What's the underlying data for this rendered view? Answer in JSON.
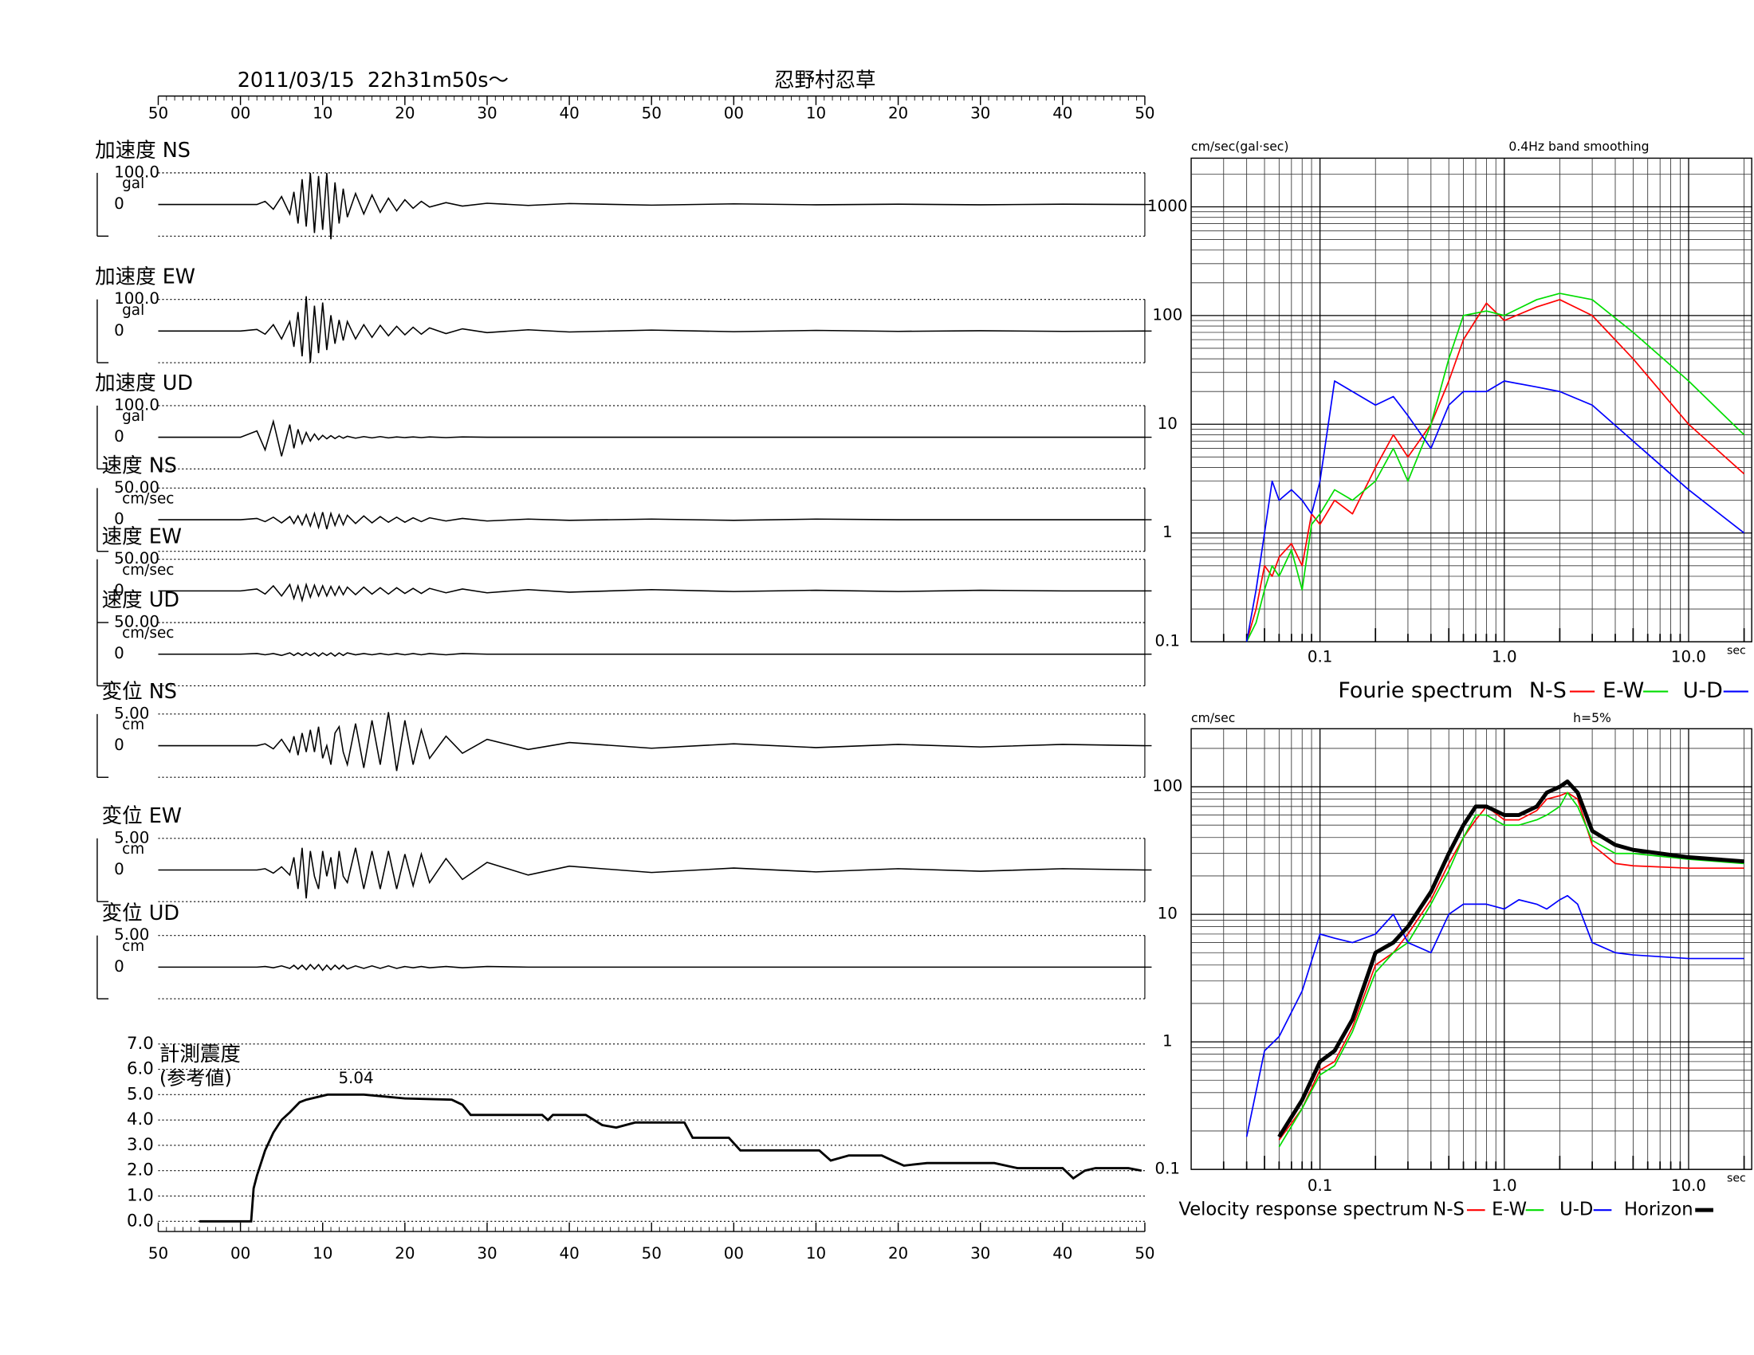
{
  "chart_data": [
    {
      "type": "waveform",
      "title": "2011/03/15  22h31m50s〜",
      "subtitle": "忍野村忍草",
      "color": "#000000",
      "xlim": [
        0,
        120
      ],
      "xticks": [
        {
          "value": 0,
          "label": "50"
        },
        {
          "value": 10,
          "label": "00"
        },
        {
          "value": 20,
          "label": "10"
        },
        {
          "value": 30,
          "label": "20"
        },
        {
          "value": 40,
          "label": "30"
        },
        {
          "value": 50,
          "label": "40"
        },
        {
          "value": 60,
          "label": "50"
        },
        {
          "value": 70,
          "label": "00"
        },
        {
          "value": 80,
          "label": "10"
        },
        {
          "value": 90,
          "label": "20"
        },
        {
          "value": 100,
          "label": "30"
        },
        {
          "value": 110,
          "label": "40"
        },
        {
          "value": 120,
          "label": "50"
        }
      ],
      "x": [
        0,
        10,
        12,
        13,
        14,
        15,
        16,
        16.5,
        17,
        17.5,
        18,
        18.5,
        19,
        19.5,
        20,
        20.5,
        21,
        21.5,
        22,
        22.5,
        23,
        24,
        25,
        26,
        27,
        28,
        29,
        30,
        31,
        32,
        33,
        35,
        37,
        40,
        45,
        50,
        60,
        70,
        80,
        90,
        100,
        110,
        120
      ],
      "series": [
        {
          "name": "加速度 NS",
          "unit": "gal",
          "ylim": [
            -100,
            100
          ],
          "yticks": [
            {
              "value": 100,
              "label": "100.0"
            },
            0
          ],
          "values": [
            0,
            0,
            0,
            10,
            -15,
            25,
            -30,
            40,
            -60,
            80,
            -70,
            100,
            -90,
            90,
            -80,
            100,
            -110,
            70,
            -60,
            50,
            -40,
            35,
            -30,
            30,
            -25,
            20,
            -20,
            15,
            -12,
            10,
            -8,
            6,
            -5,
            4,
            -3,
            3,
            -2,
            2,
            -1,
            1,
            -1,
            1,
            0
          ]
        },
        {
          "name": "加速度 EW",
          "unit": "gal",
          "ylim": [
            -100,
            100
          ],
          "yticks": [
            {
              "value": 100,
              "label": "100.0"
            },
            0
          ],
          "values": [
            0,
            0,
            5,
            -10,
            20,
            -25,
            30,
            -50,
            60,
            -80,
            110,
            -100,
            80,
            -70,
            90,
            -60,
            50,
            -40,
            35,
            -30,
            30,
            -25,
            20,
            -20,
            18,
            -15,
            15,
            -12,
            12,
            -10,
            10,
            -8,
            7,
            -5,
            4,
            -3,
            3,
            -2,
            2,
            -1,
            1,
            -1,
            0
          ]
        },
        {
          "name": "加速度 UD",
          "unit": "gal",
          "ylim": [
            -100,
            100
          ],
          "yticks": [
            {
              "value": 100,
              "label": "100.0"
            },
            0
          ],
          "values": [
            0,
            0,
            20,
            -40,
            50,
            -60,
            40,
            -35,
            25,
            -20,
            15,
            -12,
            10,
            -8,
            6,
            -5,
            5,
            -4,
            4,
            -3,
            3,
            -3,
            2,
            -2,
            2,
            -2,
            1,
            -1,
            1,
            -1,
            1,
            -1,
            1,
            0,
            0,
            0,
            0,
            0,
            0,
            0,
            0,
            0,
            0
          ]
        },
        {
          "name": "速度 NS",
          "unit": "cm/sec",
          "ylim": [
            -50,
            50
          ],
          "yticks": [
            {
              "value": 50,
              "label": "50.00"
            },
            0
          ],
          "values": [
            0,
            0,
            2,
            -3,
            4,
            -5,
            5,
            -6,
            6,
            -8,
            8,
            -10,
            10,
            -12,
            12,
            -15,
            10,
            -9,
            8,
            -8,
            7,
            -6,
            6,
            -5,
            5,
            -4,
            4,
            -4,
            3,
            -3,
            3,
            -2,
            2,
            -2,
            1,
            -1,
            1,
            -1,
            1,
            0,
            0,
            0,
            0
          ]
        },
        {
          "name": "速度 EW",
          "unit": "cm/sec",
          "ylim": [
            -50,
            50
          ],
          "yticks": [
            {
              "value": 50,
              "label": "50.00"
            },
            0
          ],
          "values": [
            0,
            0,
            3,
            -5,
            8,
            -8,
            10,
            -12,
            8,
            -15,
            10,
            -10,
            9,
            -8,
            8,
            -8,
            7,
            -7,
            7,
            -6,
            6,
            -6,
            6,
            -5,
            5,
            -5,
            5,
            -4,
            4,
            -4,
            4,
            -3,
            3,
            -3,
            2,
            -2,
            2,
            -1,
            1,
            -1,
            1,
            0,
            0
          ]
        },
        {
          "name": "速度 UD",
          "unit": "cm/sec",
          "ylim": [
            -50,
            50
          ],
          "yticks": [
            {
              "value": 50,
              "label": "50.00"
            },
            0
          ],
          "values": [
            0,
            0,
            1,
            -1,
            1,
            -2,
            2,
            -2,
            2,
            -2,
            2,
            -2,
            2,
            -3,
            2,
            -2,
            2,
            -3,
            2,
            -2,
            2,
            -1,
            1,
            -1,
            1,
            -1,
            1,
            -1,
            1,
            -1,
            1,
            -1,
            1,
            0,
            0,
            0,
            0,
            0,
            0,
            0,
            0,
            0,
            0
          ]
        },
        {
          "name": "変位 NS",
          "unit": "cm",
          "ylim": [
            -5,
            5
          ],
          "yticks": [
            {
              "value": 5,
              "label": "5.00"
            },
            0
          ],
          "values": [
            0,
            0,
            0,
            0.3,
            -0.5,
            1,
            -1,
            1.5,
            -1.5,
            2,
            -1,
            2.5,
            -1,
            3,
            -2,
            0,
            -3,
            2,
            3,
            -1,
            -3,
            3.5,
            -3.5,
            4,
            -3,
            5.3,
            -4,
            4,
            -3,
            2.5,
            -2,
            1.5,
            -1.2,
            1,
            -0.6,
            0.5,
            -0.4,
            0.3,
            -0.3,
            0.2,
            -0.2,
            0.2,
            0
          ]
        },
        {
          "name": "変位 EW",
          "unit": "cm",
          "ylim": [
            -5,
            5
          ],
          "yticks": [
            {
              "value": 5,
              "label": "5.00"
            },
            0
          ],
          "values": [
            0,
            0,
            0,
            0.2,
            -0.5,
            0.5,
            -0.8,
            2,
            -3,
            3.5,
            -4.5,
            3,
            -1,
            -3,
            3,
            -1,
            2,
            -3,
            3,
            -1,
            -2,
            3.5,
            -3,
            3,
            -3,
            3,
            -3,
            2.5,
            -2.5,
            2.5,
            -2,
            1.8,
            -1.5,
            1.2,
            -0.8,
            0.6,
            -0.4,
            0.3,
            -0.3,
            0.2,
            -0.2,
            0.2,
            0
          ]
        },
        {
          "name": "変位 UD",
          "unit": "cm",
          "ylim": [
            -5,
            5
          ],
          "yticks": [
            {
              "value": 5,
              "label": "5.00"
            },
            0
          ],
          "values": [
            0,
            0,
            0,
            0.1,
            -0.1,
            0.2,
            -0.2,
            0.3,
            -0.3,
            0.3,
            -0.4,
            0.4,
            -0.3,
            0.4,
            -0.5,
            0.3,
            -0.4,
            0.3,
            -0.3,
            0.3,
            -0.3,
            0.2,
            -0.2,
            0.2,
            -0.2,
            0.2,
            -0.2,
            0.1,
            -0.1,
            0.1,
            -0.1,
            0.1,
            -0.1,
            0.1,
            0,
            0,
            0,
            0,
            0,
            0,
            0,
            0,
            0
          ]
        }
      ]
    },
    {
      "type": "line",
      "title": "計測震度",
      "subtitle": "(参考値)",
      "annotation": "5.04",
      "color": "#000000",
      "grid": true,
      "xlim": [
        0,
        120
      ],
      "xticks": [
        {
          "value": 0,
          "label": "50"
        },
        {
          "value": 10,
          "label": "00"
        },
        {
          "value": 20,
          "label": "10"
        },
        {
          "value": 30,
          "label": "20"
        },
        {
          "value": 40,
          "label": "30"
        },
        {
          "value": 50,
          "label": "40"
        },
        {
          "value": 60,
          "label": "50"
        },
        {
          "value": 70,
          "label": "00"
        },
        {
          "value": 80,
          "label": "10"
        },
        {
          "value": 90,
          "label": "20"
        },
        {
          "value": 100,
          "label": "30"
        },
        {
          "value": 110,
          "label": "40"
        },
        {
          "value": 120,
          "label": "50"
        }
      ],
      "ylim": [
        0,
        7
      ],
      "yticks": [
        {
          "value": 0,
          "label": "0.0"
        },
        {
          "value": 1,
          "label": "1.0"
        },
        {
          "value": 2,
          "label": "2.0"
        },
        {
          "value": 3,
          "label": "3.0"
        },
        {
          "value": 4,
          "label": "4.0"
        },
        {
          "value": 5,
          "label": "5.0"
        },
        {
          "value": 6,
          "label": "6.0"
        },
        {
          "value": 7,
          "label": "7.0"
        }
      ],
      "x": [
        5,
        11.3,
        11.6,
        12,
        13,
        14,
        15,
        16,
        17.2,
        18,
        20.6,
        25,
        30,
        35.7,
        37,
        38,
        46.7,
        47.4,
        48,
        52,
        54,
        55.7,
        58,
        64,
        65,
        69.4,
        70.8,
        80.4,
        81.8,
        84,
        88,
        89.3,
        90.7,
        93.5,
        101.7,
        104.5,
        110,
        111.3,
        112.7,
        114,
        118,
        119.6
      ],
      "values": [
        0,
        0,
        1.3,
        1.8,
        2.8,
        3.5,
        4,
        4.3,
        4.7,
        4.8,
        5.0,
        5.0,
        4.85,
        4.8,
        4.6,
        4.2,
        4.2,
        4.0,
        4.2,
        4.2,
        3.8,
        3.7,
        3.9,
        3.9,
        3.3,
        3.3,
        2.8,
        2.8,
        2.4,
        2.6,
        2.6,
        2.4,
        2.2,
        2.3,
        2.3,
        2.1,
        2.1,
        1.7,
        2.0,
        2.1,
        2.1,
        2.0
      ]
    },
    {
      "type": "line",
      "log_x": true,
      "log_y": true,
      "grid": true,
      "ylabel": "cm/sec(gal·sec)",
      "note": "0.4Hz band smoothing",
      "xlabel": "sec",
      "legend_title": "Fourie spectrum",
      "xlim": [
        0.02,
        22
      ],
      "ylim": [
        0.1,
        2800
      ],
      "xticks": [
        0.1,
        {
          "value": 1,
          "label": "1.0"
        },
        {
          "value": 10,
          "label": "10.0"
        }
      ],
      "yticks": [
        0.1,
        1,
        10,
        100,
        1000
      ],
      "x": [
        0.04,
        0.045,
        0.05,
        0.055,
        0.06,
        0.07,
        0.08,
        0.09,
        0.1,
        0.12,
        0.15,
        0.2,
        0.25,
        0.3,
        0.4,
        0.5,
        0.6,
        0.8,
        1.0,
        1.5,
        2,
        3,
        5,
        10,
        20
      ],
      "series": [
        {
          "name": "N-S",
          "color": "#ff0000",
          "values": [
            0.1,
            0.2,
            0.5,
            0.4,
            0.6,
            0.8,
            0.5,
            1.5,
            1.2,
            2,
            1.5,
            4,
            8,
            5,
            10,
            25,
            60,
            130,
            90,
            120,
            140,
            100,
            40,
            10,
            3.5
          ]
        },
        {
          "name": "E-W",
          "color": "#00dd00",
          "values": [
            0.1,
            0.15,
            0.3,
            0.5,
            0.4,
            0.7,
            0.3,
            1.2,
            1.5,
            2.5,
            2,
            3,
            6,
            3,
            10,
            40,
            100,
            110,
            100,
            140,
            160,
            140,
            70,
            25,
            8
          ]
        },
        {
          "name": "U-D",
          "color": "#0000ff",
          "values": [
            0.1,
            0.3,
            1,
            3,
            2,
            2.5,
            2,
            1.5,
            3,
            25,
            20,
            15,
            18,
            12,
            6,
            15,
            20,
            20,
            25,
            22,
            20,
            15,
            7,
            2.5,
            1
          ]
        }
      ]
    },
    {
      "type": "line",
      "log_x": true,
      "log_y": true,
      "grid": true,
      "ylabel": "cm/sec",
      "note": "h=5%",
      "xlabel": "sec",
      "legend_title": "Velocity response spectrum",
      "xlim": [
        0.02,
        22
      ],
      "ylim": [
        0.1,
        285
      ],
      "xticks": [
        0.1,
        {
          "value": 1,
          "label": "1.0"
        },
        {
          "value": 10,
          "label": "10.0"
        }
      ],
      "yticks": [
        0.1,
        1,
        10,
        100
      ],
      "x": [
        0.04,
        0.05,
        0.06,
        0.08,
        0.1,
        0.12,
        0.15,
        0.2,
        0.25,
        0.3,
        0.4,
        0.5,
        0.6,
        0.7,
        0.8,
        1.0,
        1.2,
        1.5,
        1.7,
        2,
        2.2,
        2.5,
        3,
        4,
        5,
        10,
        20
      ],
      "series": [
        {
          "name": "N-S",
          "color": "#ff0000",
          "values": [
            null,
            null,
            0.17,
            0.3,
            0.6,
            0.7,
            1.3,
            4,
            5,
            7,
            13,
            25,
            40,
            55,
            70,
            55,
            55,
            65,
            80,
            85,
            90,
            80,
            35,
            25,
            24,
            23,
            23
          ]
        },
        {
          "name": "E-W",
          "color": "#00dd00",
          "values": [
            null,
            null,
            0.15,
            0.3,
            0.55,
            0.65,
            1.2,
            3.5,
            5,
            6,
            12,
            22,
            40,
            60,
            60,
            50,
            50,
            55,
            60,
            70,
            90,
            70,
            38,
            30,
            30,
            27,
            25
          ]
        },
        {
          "name": "U-D",
          "color": "#0000ff",
          "values": [
            0.18,
            0.85,
            1.1,
            2.5,
            7,
            6.5,
            6,
            7,
            10,
            6,
            5,
            10,
            12,
            12,
            12,
            11,
            13,
            12,
            11,
            13,
            14,
            12,
            6,
            5,
            4.8,
            4.5,
            4.5
          ]
        },
        {
          "name": "Horizon",
          "color": "#000000",
          "values": [
            null,
            null,
            0.18,
            0.35,
            0.7,
            0.85,
            1.5,
            5,
            6,
            8,
            15,
            30,
            50,
            70,
            70,
            60,
            60,
            70,
            90,
            100,
            110,
            90,
            45,
            35,
            32,
            28,
            26
          ]
        }
      ]
    }
  ]
}
